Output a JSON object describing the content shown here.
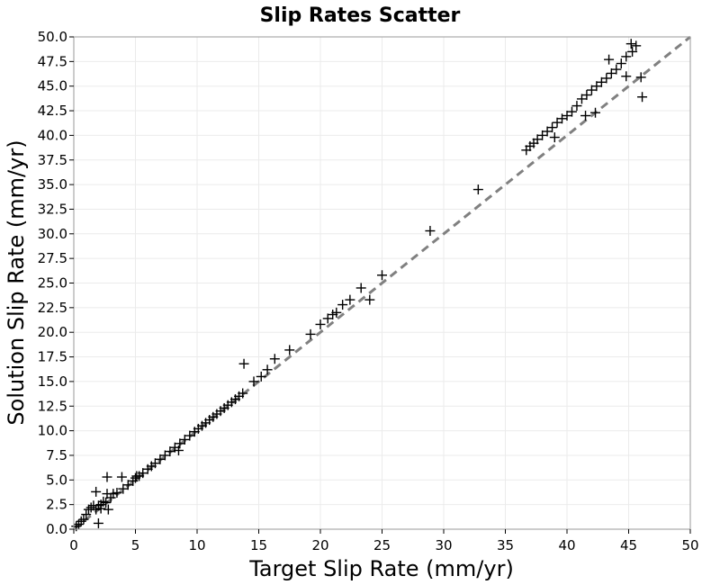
{
  "chart_data": {
    "type": "scatter",
    "title": "Slip Rates Scatter",
    "xlabel": "Target Slip Rate (mm/yr)",
    "ylabel": "Solution Slip Rate (mm/yr)",
    "xlim": [
      0,
      50
    ],
    "ylim": [
      0,
      50
    ],
    "x_ticks": [
      "0",
      "5",
      "10",
      "15",
      "20",
      "25",
      "30",
      "35",
      "40",
      "45",
      "50"
    ],
    "y_ticks": [
      "0.0",
      "2.5",
      "5.0",
      "7.5",
      "10.0",
      "12.5",
      "15.0",
      "17.5",
      "20.0",
      "22.5",
      "25.0",
      "27.5",
      "30.0",
      "32.5",
      "35.0",
      "37.5",
      "40.0",
      "42.5",
      "45.0",
      "47.5",
      "50.0"
    ],
    "grid": true,
    "marker": "+",
    "marker_color": "#000000",
    "reference_line": {
      "from": [
        0,
        0
      ],
      "to": [
        50,
        50
      ],
      "style": "dashed",
      "color": "#808080"
    },
    "series": [
      {
        "x": [
          0.2,
          0.4,
          0.6,
          0.8,
          1.0,
          1.2,
          1.4,
          1.6,
          1.8,
          2.0,
          2.2,
          2.4,
          2.0,
          2.6,
          3.0,
          1.8,
          2.2,
          2.7,
          3.2,
          3.5,
          4.0,
          4.4,
          4.8,
          5.0,
          5.3,
          5.6,
          6.0,
          6.3,
          6.6,
          7.0,
          7.4,
          7.8,
          8.2,
          8.6,
          9.0,
          9.4,
          9.8,
          10.1,
          10.4,
          10.7,
          11.0,
          11.3,
          11.6,
          11.9,
          12.2,
          12.5,
          12.8,
          13.1,
          13.4,
          13.7,
          13.8,
          14.6,
          15.2,
          15.7,
          16.3,
          17.5,
          19.2,
          20.0,
          20.6,
          21.0,
          21.3,
          21.8,
          22.4,
          23.3,
          24.0,
          25.0,
          28.9,
          32.8,
          36.7,
          37.0,
          37.3,
          37.6,
          38.0,
          38.4,
          38.8,
          39.2,
          39.6,
          40.0,
          40.4,
          40.8,
          41.2,
          41.6,
          42.0,
          42.4,
          42.8,
          43.2,
          43.6,
          44.0,
          44.4,
          44.8,
          45.2,
          45.6,
          46.1,
          44.8,
          42.3,
          46.0,
          45.3,
          43.4,
          41.5,
          39.0,
          2.7,
          3.9,
          5.1,
          8.5,
          2.8
        ],
        "y": [
          0.3,
          0.5,
          0.8,
          1.0,
          1.5,
          2.0,
          2.2,
          2.4,
          3.8,
          2.4,
          2.5,
          2.8,
          0.6,
          2.7,
          3.2,
          2.0,
          2.1,
          3.6,
          3.6,
          3.7,
          4.1,
          4.5,
          4.9,
          5.2,
          5.4,
          5.7,
          6.1,
          6.4,
          6.7,
          7.1,
          7.5,
          7.9,
          8.3,
          8.7,
          9.1,
          9.5,
          9.9,
          10.2,
          10.5,
          10.8,
          11.1,
          11.4,
          11.7,
          12.0,
          12.3,
          12.6,
          12.9,
          13.2,
          13.5,
          13.8,
          16.8,
          15.0,
          15.5,
          16.2,
          17.3,
          18.2,
          19.8,
          20.8,
          21.4,
          21.8,
          22.0,
          22.8,
          23.3,
          24.5,
          23.3,
          25.8,
          30.3,
          34.5,
          38.5,
          38.9,
          39.2,
          39.6,
          40.0,
          40.4,
          40.8,
          41.3,
          41.7,
          42.0,
          42.4,
          43.0,
          43.7,
          44.1,
          44.6,
          45.0,
          45.4,
          45.8,
          46.3,
          46.7,
          47.3,
          48.0,
          49.3,
          49.1,
          43.9,
          46.0,
          42.3,
          45.9,
          48.5,
          47.7,
          42.0,
          39.8,
          5.3,
          5.3,
          5.4,
          8.0,
          2.0
        ]
      }
    ]
  }
}
